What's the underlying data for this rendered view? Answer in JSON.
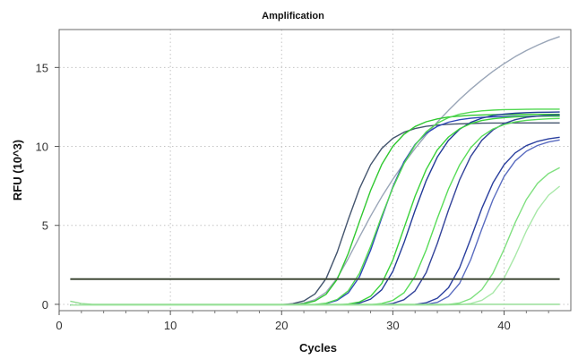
{
  "chart_data": {
    "type": "line",
    "title": "Amplification",
    "xlabel": "Cycles",
    "ylabel": "RFU (10^3)",
    "xlim": [
      0,
      46
    ],
    "ylim": [
      -0.4,
      17.4
    ],
    "xticks": [
      0,
      10,
      20,
      30,
      40
    ],
    "yticks": [
      0,
      5,
      10,
      15
    ],
    "grid": true,
    "legend": "none",
    "cycles": [
      1,
      45
    ],
    "threshold": 1.6,
    "series": [
      {
        "color": "#9aa6b8",
        "values": [
          -0.05,
          -0.05,
          -0.05,
          -0.05,
          -0.05,
          -0.05,
          -0.05,
          -0.05,
          -0.05,
          -0.05,
          -0.05,
          -0.05,
          -0.05,
          -0.05,
          -0.05,
          -0.05,
          -0.05,
          -0.05,
          -0.04,
          -0.03,
          0.01,
          0.09,
          0.29,
          0.77,
          1.66,
          2.91,
          4.27,
          5.59,
          6.81,
          7.92,
          8.93,
          9.87,
          10.73,
          11.54,
          12.28,
          12.98,
          13.62,
          14.21,
          14.75,
          15.24,
          15.68,
          16.07,
          16.41,
          16.71,
          16.96
        ]
      },
      {
        "color": "#44556e",
        "values": [
          -0.05,
          -0.05,
          -0.05,
          -0.05,
          -0.05,
          -0.05,
          -0.05,
          -0.05,
          -0.05,
          -0.05,
          -0.05,
          -0.05,
          -0.05,
          -0.05,
          -0.05,
          -0.05,
          -0.05,
          -0.05,
          -0.04,
          -0.02,
          0.04,
          0.22,
          0.66,
          1.63,
          3.3,
          5.38,
          7.33,
          8.84,
          9.87,
          10.51,
          10.9,
          11.13,
          11.27,
          11.35,
          11.4,
          11.43,
          11.45,
          11.47,
          11.48,
          11.48,
          11.49,
          11.49,
          11.49,
          11.49,
          11.49
        ]
      },
      {
        "color": "#30c830",
        "values": [
          -0.05,
          -0.05,
          -0.05,
          -0.05,
          -0.05,
          -0.05,
          -0.05,
          -0.05,
          -0.05,
          -0.05,
          -0.05,
          -0.05,
          -0.05,
          -0.05,
          -0.05,
          -0.05,
          -0.05,
          -0.05,
          -0.05,
          -0.04,
          -0.02,
          0.04,
          0.21,
          0.64,
          1.59,
          3.23,
          5.25,
          7.22,
          8.85,
          10.01,
          10.77,
          11.26,
          11.56,
          11.74,
          11.86,
          11.92,
          11.97,
          11.99,
          12.01,
          12.02,
          12.02,
          12.03,
          12.03,
          12.03,
          12.03
        ]
      },
      {
        "color": "#2d48b8",
        "values": [
          -0.05,
          -0.05,
          -0.05,
          -0.05,
          -0.05,
          -0.05,
          -0.05,
          -0.05,
          -0.05,
          -0.05,
          -0.05,
          -0.05,
          -0.05,
          -0.05,
          -0.05,
          -0.05,
          -0.05,
          -0.05,
          -0.05,
          -0.05,
          -0.05,
          -0.04,
          -0.02,
          0.05,
          0.26,
          0.73,
          1.75,
          3.43,
          5.48,
          7.44,
          9.02,
          10.12,
          10.83,
          11.27,
          11.53,
          11.69,
          11.78,
          11.84,
          11.87,
          11.89,
          11.9,
          11.91,
          11.91,
          11.91,
          11.91
        ]
      },
      {
        "color": "#52d852",
        "values": [
          -0.05,
          -0.05,
          -0.05,
          -0.05,
          -0.05,
          -0.05,
          -0.05,
          -0.05,
          -0.05,
          -0.05,
          -0.05,
          -0.05,
          -0.05,
          -0.05,
          -0.05,
          -0.05,
          -0.05,
          -0.05,
          -0.05,
          -0.05,
          -0.05,
          -0.04,
          -0.01,
          0.07,
          0.31,
          0.86,
          1.97,
          3.67,
          5.59,
          7.38,
          8.9,
          10.08,
          10.92,
          11.47,
          11.82,
          12.04,
          12.17,
          12.25,
          12.3,
          12.33,
          12.34,
          12.35,
          12.36,
          12.36,
          12.36
        ]
      },
      {
        "color": "#233b98",
        "values": [
          -0.05,
          -0.05,
          -0.05,
          -0.05,
          -0.05,
          -0.05,
          -0.05,
          -0.05,
          -0.05,
          -0.05,
          -0.05,
          -0.05,
          -0.05,
          -0.05,
          -0.05,
          -0.05,
          -0.05,
          -0.05,
          -0.05,
          -0.05,
          -0.05,
          -0.05,
          -0.05,
          -0.05,
          -0.04,
          -0.01,
          0.08,
          0.33,
          0.92,
          2.09,
          3.89,
          5.95,
          7.83,
          9.33,
          10.39,
          11.09,
          11.52,
          11.79,
          11.95,
          12.05,
          12.1,
          12.14,
          12.16,
          12.17,
          12.18
        ]
      },
      {
        "color": "#3ad23a",
        "values": [
          -0.05,
          -0.05,
          -0.05,
          -0.05,
          -0.05,
          -0.05,
          -0.05,
          -0.05,
          -0.05,
          -0.05,
          -0.05,
          -0.05,
          -0.05,
          -0.05,
          -0.05,
          -0.05,
          -0.05,
          -0.05,
          -0.05,
          -0.05,
          -0.05,
          -0.05,
          -0.05,
          -0.04,
          -0.03,
          0.02,
          0.15,
          0.51,
          1.32,
          2.81,
          4.82,
          6.85,
          8.54,
          9.78,
          10.6,
          11.12,
          11.44,
          11.64,
          11.75,
          11.82,
          11.87,
          11.89,
          11.91,
          11.91,
          11.92
        ]
      },
      {
        "color": "#33439a",
        "values": [
          -0.05,
          -0.05,
          -0.05,
          -0.05,
          -0.05,
          -0.05,
          -0.05,
          -0.05,
          -0.05,
          -0.05,
          -0.05,
          -0.05,
          -0.05,
          -0.05,
          -0.05,
          -0.05,
          -0.05,
          -0.05,
          -0.05,
          -0.05,
          -0.05,
          -0.05,
          -0.05,
          -0.05,
          -0.05,
          -0.05,
          -0.05,
          -0.04,
          -0.02,
          0.06,
          0.29,
          0.85,
          2.01,
          3.85,
          5.97,
          7.89,
          9.37,
          10.39,
          11.04,
          11.45,
          11.69,
          11.84,
          11.92,
          11.97,
          12.0
        ]
      },
      {
        "color": "#58dc58",
        "values": [
          -0.05,
          -0.05,
          -0.05,
          -0.05,
          -0.05,
          -0.05,
          -0.05,
          -0.05,
          -0.05,
          -0.05,
          -0.05,
          -0.05,
          -0.05,
          -0.05,
          -0.05,
          -0.05,
          -0.05,
          -0.05,
          -0.05,
          -0.05,
          -0.05,
          -0.05,
          -0.05,
          -0.05,
          -0.05,
          -0.05,
          -0.04,
          -0.02,
          0.05,
          0.25,
          0.73,
          1.77,
          3.45,
          5.44,
          7.31,
          8.83,
          9.92,
          10.64,
          11.1,
          11.38,
          11.55,
          11.65,
          11.71,
          11.75,
          11.77
        ]
      },
      {
        "color": "#2a3f9e",
        "values": [
          -0.05,
          -0.05,
          -0.05,
          -0.05,
          -0.05,
          -0.05,
          -0.05,
          -0.05,
          -0.05,
          -0.05,
          -0.05,
          -0.05,
          -0.05,
          -0.05,
          -0.05,
          -0.05,
          -0.05,
          -0.05,
          -0.05,
          -0.05,
          -0.05,
          -0.05,
          -0.05,
          -0.05,
          -0.05,
          -0.05,
          -0.05,
          -0.05,
          -0.05,
          -0.05,
          -0.04,
          -0.01,
          0.1,
          0.39,
          1.05,
          2.32,
          4.16,
          6.08,
          7.69,
          8.84,
          9.59,
          10.05,
          10.32,
          10.48,
          10.58
        ]
      },
      {
        "color": "#5a6cc0",
        "values": [
          -0.05,
          -0.05,
          -0.05,
          -0.05,
          -0.05,
          -0.05,
          -0.05,
          -0.05,
          -0.05,
          -0.05,
          -0.05,
          -0.05,
          -0.05,
          -0.05,
          -0.05,
          -0.05,
          -0.05,
          -0.05,
          -0.05,
          -0.05,
          -0.05,
          -0.05,
          -0.05,
          -0.05,
          -0.05,
          -0.05,
          -0.05,
          -0.05,
          -0.05,
          -0.05,
          -0.05,
          -0.04,
          0.0,
          0.13,
          0.5,
          1.33,
          2.83,
          4.77,
          6.63,
          8.09,
          9.08,
          9.69,
          10.06,
          10.28,
          10.41
        ]
      },
      {
        "color": "#7fe07f",
        "values": [
          -0.05,
          -0.05,
          -0.05,
          -0.05,
          -0.05,
          -0.05,
          -0.05,
          -0.05,
          -0.05,
          -0.05,
          -0.05,
          -0.05,
          -0.05,
          -0.05,
          -0.05,
          -0.05,
          -0.05,
          -0.05,
          -0.05,
          -0.05,
          -0.05,
          -0.05,
          -0.05,
          -0.05,
          -0.05,
          -0.05,
          -0.05,
          -0.05,
          -0.05,
          -0.05,
          -0.05,
          -0.05,
          -0.05,
          -0.04,
          -0.01,
          0.09,
          0.36,
          0.93,
          1.97,
          3.49,
          5.17,
          6.63,
          7.66,
          8.29,
          8.66
        ]
      },
      {
        "color": "#a8e8a8",
        "values": [
          -0.05,
          -0.05,
          -0.05,
          -0.05,
          -0.05,
          -0.05,
          -0.05,
          -0.05,
          -0.05,
          -0.05,
          -0.05,
          -0.05,
          -0.05,
          -0.05,
          -0.05,
          -0.05,
          -0.05,
          -0.05,
          -0.05,
          -0.05,
          -0.05,
          -0.05,
          -0.05,
          -0.05,
          -0.05,
          -0.05,
          -0.05,
          -0.05,
          -0.05,
          -0.05,
          -0.05,
          -0.05,
          -0.05,
          -0.05,
          -0.04,
          -0.02,
          0.05,
          0.26,
          0.72,
          1.65,
          3.06,
          4.64,
          5.98,
          6.91,
          7.48
        ]
      },
      {
        "color": "#8fdc8f",
        "values": [
          0.2,
          0.05,
          0.0,
          0.0,
          0.0,
          0.0,
          0.0,
          0.0,
          0.0,
          0.0,
          0.0,
          0.0,
          0.0,
          0.0,
          0.0,
          0.0,
          0.0,
          0.0,
          0.0,
          0.0,
          0.0,
          0.0,
          0.0,
          0.0,
          0.0,
          0.0,
          0.0,
          0.0,
          0.0,
          0.0,
          0.0,
          0.0,
          0.0,
          0.0,
          0.0,
          0.0,
          0.0,
          0.0,
          0.0,
          0.0,
          0.0,
          0.0,
          0.0,
          0.0,
          0.0
        ]
      }
    ]
  }
}
